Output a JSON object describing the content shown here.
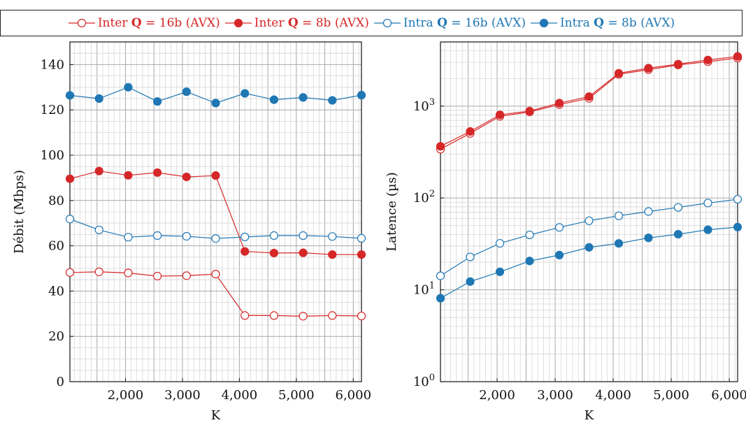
{
  "legend": [
    {
      "label": "Inter Q = 16b (AVX)",
      "prefix": "Inter ",
      "bold": "Q",
      "suffix": " = 16b (AVX)",
      "color": "#d62728",
      "marker": "open"
    },
    {
      "label": "Inter Q = 8b (AVX)",
      "prefix": "Inter ",
      "bold": "Q",
      "suffix": " = 8b (AVX)",
      "color": "#d62728",
      "marker": "filled"
    },
    {
      "label": "Intra Q = 16b (AVX)",
      "prefix": "Intra ",
      "bold": "Q",
      "suffix": " = 16b (AVX)",
      "color": "#1f77b4",
      "marker": "open"
    },
    {
      "label": "Intra Q = 8b (AVX)",
      "prefix": "Intra ",
      "bold": "Q",
      "suffix": " = 8b (AVX)",
      "color": "#1f77b4",
      "marker": "filled"
    }
  ],
  "chart_data": [
    {
      "type": "line",
      "xlabel": "K",
      "ylabel": "Débit (Mbps)",
      "yscale": "linear",
      "xlim": [
        1024,
        6144
      ],
      "ylim": [
        0,
        150
      ],
      "xticks": [
        2000,
        3000,
        4000,
        5000,
        6000
      ],
      "xtick_labels": [
        "2,000",
        "3,000",
        "4,000",
        "5,000",
        "6,000"
      ],
      "yticks": [
        0,
        20,
        40,
        60,
        80,
        100,
        120,
        140
      ],
      "ytick_labels": [
        "0",
        "20",
        "40",
        "60",
        "80",
        "100",
        "120",
        "140"
      ],
      "grid": true,
      "x": [
        1024,
        1536,
        2048,
        2560,
        3072,
        3584,
        4096,
        4608,
        5120,
        5632,
        6144
      ],
      "series": [
        {
          "name": "Inter Q = 16b (AVX)",
          "color": "#d62728",
          "marker": "open",
          "values": [
            48.2,
            48.5,
            48.0,
            46.6,
            46.8,
            47.5,
            29.2,
            29.2,
            28.9,
            29.2,
            29.0
          ]
        },
        {
          "name": "Inter Q = 8b (AVX)",
          "color": "#d62728",
          "marker": "filled",
          "values": [
            89.6,
            93.0,
            91.1,
            92.3,
            90.4,
            91.0,
            57.5,
            56.8,
            56.9,
            56.1,
            56.1
          ]
        },
        {
          "name": "Intra Q = 16b (AVX)",
          "color": "#1f77b4",
          "marker": "open",
          "values": [
            71.8,
            67.0,
            63.8,
            64.5,
            64.2,
            63.2,
            63.9,
            64.5,
            64.5,
            64.1,
            63.3
          ]
        },
        {
          "name": "Intra Q = 8b (AVX)",
          "color": "#1f77b4",
          "marker": "filled",
          "values": [
            126.4,
            125.0,
            130.0,
            123.7,
            128.0,
            123.0,
            127.3,
            124.5,
            125.5,
            124.2,
            126.5
          ]
        }
      ]
    },
    {
      "type": "line",
      "xlabel": "K",
      "ylabel": "Latence (µs)",
      "yscale": "log",
      "xlim": [
        1024,
        6144
      ],
      "ylim": [
        1,
        5000
      ],
      "xticks": [
        2000,
        3000,
        4000,
        5000,
        6000
      ],
      "xtick_labels": [
        "2,000",
        "3,000",
        "4,000",
        "5,000",
        "6,000"
      ],
      "yticks": [
        1,
        10,
        100,
        1000
      ],
      "ytick_labels": [
        "10^0",
        "10^1",
        "10^2",
        "10^3"
      ],
      "grid": true,
      "x": [
        1024,
        1536,
        2048,
        2560,
        3072,
        3584,
        4096,
        4608,
        5120,
        5632,
        6144
      ],
      "series": [
        {
          "name": "Inter Q = 16b (AVX)",
          "color": "#d62728",
          "marker": "open",
          "values": [
            340,
            505,
            775,
            865,
            1040,
            1215,
            2220,
            2500,
            2810,
            3050,
            3340
          ]
        },
        {
          "name": "Inter Q = 8b (AVX)",
          "color": "#d62728",
          "marker": "filled",
          "values": [
            365,
            530,
            805,
            885,
            1080,
            1270,
            2280,
            2590,
            2870,
            3180,
            3480
          ]
        },
        {
          "name": "Intra Q = 16b (AVX)",
          "color": "#1f77b4",
          "marker": "open",
          "values": [
            14.2,
            22.8,
            32.1,
            39.6,
            47.8,
            56.5,
            64.0,
            71.2,
            79.0,
            88.1,
            96.8
          ]
        },
        {
          "name": "Intra Q = 8b (AVX)",
          "color": "#1f77b4",
          "marker": "filled",
          "values": [
            8.1,
            12.3,
            15.7,
            20.6,
            23.9,
            29.0,
            32.0,
            36.8,
            40.3,
            45.1,
            48.2
          ]
        }
      ]
    }
  ]
}
